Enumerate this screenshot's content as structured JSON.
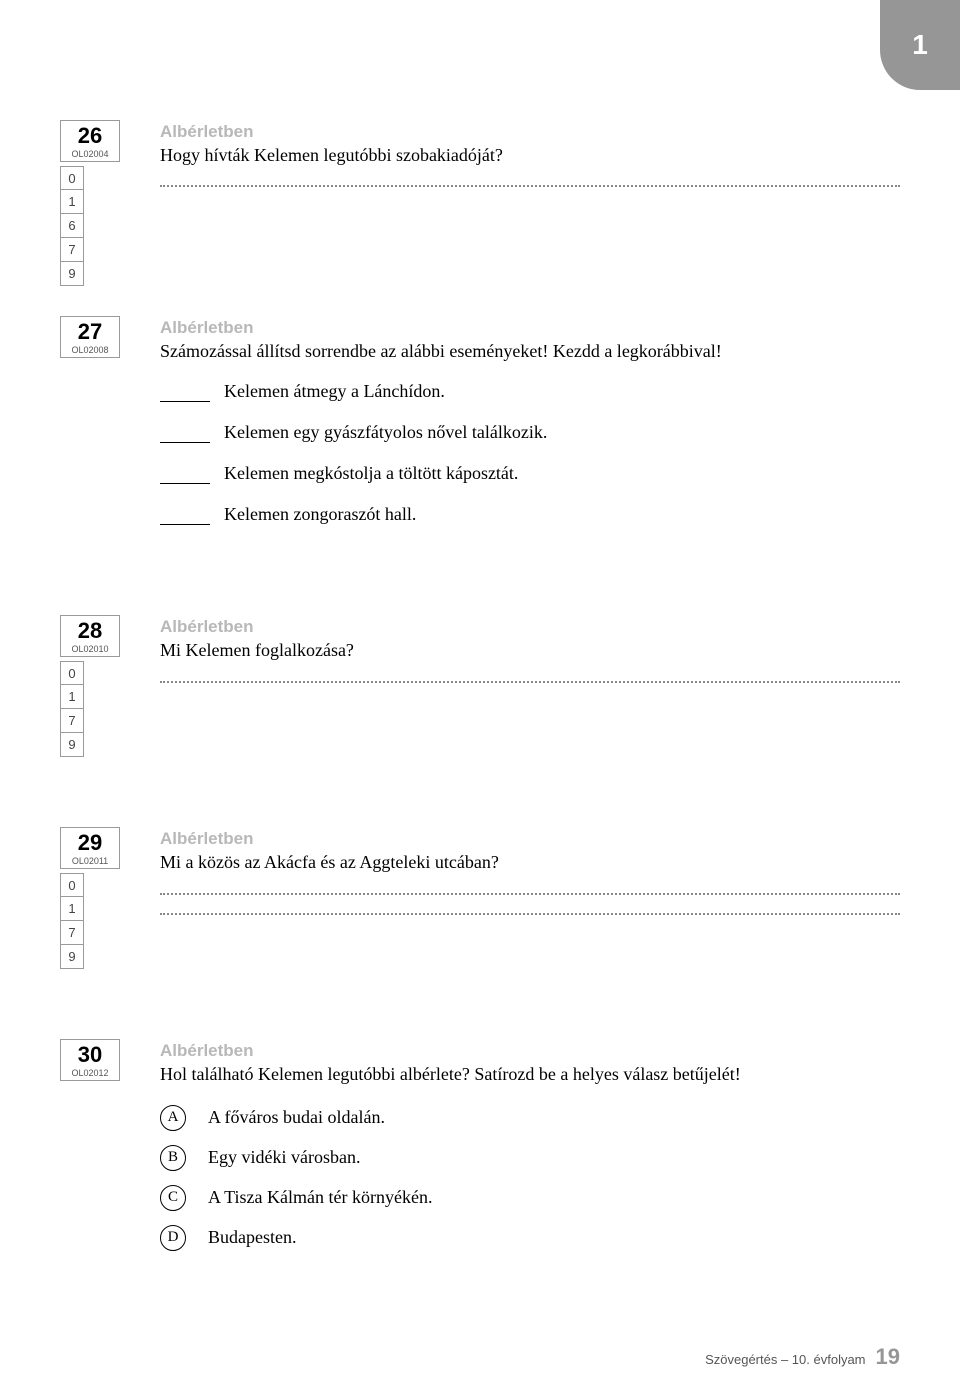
{
  "corner_tab": "1",
  "section_label": "Albérletben",
  "questions": [
    {
      "num": "26",
      "code": "OL02004",
      "scores": [
        "0",
        "1",
        "6",
        "7",
        "9"
      ],
      "text": "Hogy hívták Kelemen legutóbbi szobakiadóját?",
      "type": "open",
      "answer_lines": 1
    },
    {
      "num": "27",
      "code": "OL02008",
      "scores": [],
      "text": "Számozással állítsd sorrendbe az alábbi eseményeket! Kezdd a legkorábbival!",
      "type": "ordering",
      "items": [
        "Kelemen átmegy a Lánchídon.",
        "Kelemen egy gyászfátyolos nővel találkozik.",
        "Kelemen megkóstolja a töltött káposztát.",
        "Kelemen zongoraszót hall."
      ]
    },
    {
      "num": "28",
      "code": "OL02010",
      "scores": [
        "0",
        "1",
        "7",
        "9"
      ],
      "text": "Mi Kelemen foglalkozása?",
      "type": "open",
      "answer_lines": 1
    },
    {
      "num": "29",
      "code": "OL02011",
      "scores": [
        "0",
        "1",
        "7",
        "9"
      ],
      "text": "Mi a közös az Akácfa és az Aggteleki utcában?",
      "type": "open",
      "answer_lines": 2
    },
    {
      "num": "30",
      "code": "OL02012",
      "scores": [],
      "text": "Hol található Kelemen legutóbbi albérlete? Satírozd be a helyes válasz betűjelét!",
      "type": "mc",
      "options": [
        {
          "letter": "A",
          "text": "A főváros budai oldalán."
        },
        {
          "letter": "B",
          "text": "Egy vidéki városban."
        },
        {
          "letter": "C",
          "text": "A Tisza Kálmán tér környékén."
        },
        {
          "letter": "D",
          "text": "Budapesten."
        }
      ]
    }
  ],
  "footer": {
    "text": "Szövegértés – 10. évfolyam",
    "page": "19"
  },
  "colors": {
    "tab_bg": "#969696",
    "label_gray": "#b8b8b8",
    "border_gray": "#9a9a9a"
  }
}
